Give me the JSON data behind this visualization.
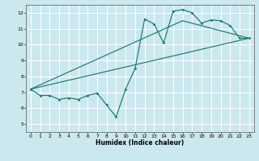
{
  "title": "",
  "xlabel": "Humidex (Indice chaleur)",
  "ylabel": "",
  "background_color": "#cce8ef",
  "grid_color": "#ffffff",
  "line_color": "#1a7a6e",
  "xlim": [
    -0.5,
    23.5
  ],
  "ylim": [
    4.5,
    12.5
  ],
  "xticks": [
    0,
    1,
    2,
    3,
    4,
    5,
    6,
    7,
    8,
    9,
    10,
    11,
    12,
    13,
    14,
    15,
    16,
    17,
    18,
    19,
    20,
    21,
    22,
    23
  ],
  "yticks": [
    5,
    6,
    7,
    8,
    9,
    10,
    11,
    12
  ],
  "curve1_x": [
    0,
    1,
    2,
    3,
    4,
    5,
    6,
    7,
    8,
    9,
    10,
    11,
    12,
    13,
    14,
    15,
    16,
    17,
    18,
    19,
    20,
    21,
    22,
    23
  ],
  "curve1_y": [
    7.2,
    6.8,
    6.8,
    6.55,
    6.65,
    6.55,
    6.8,
    6.95,
    6.2,
    5.45,
    7.2,
    8.5,
    11.6,
    11.3,
    10.1,
    12.1,
    12.2,
    12.0,
    11.35,
    11.55,
    11.5,
    11.2,
    10.4,
    10.4
  ],
  "curve2_x": [
    0,
    23
  ],
  "curve2_y": [
    7.2,
    10.4
  ],
  "curve3_x": [
    0,
    16,
    23
  ],
  "curve3_y": [
    7.2,
    11.5,
    10.4
  ]
}
